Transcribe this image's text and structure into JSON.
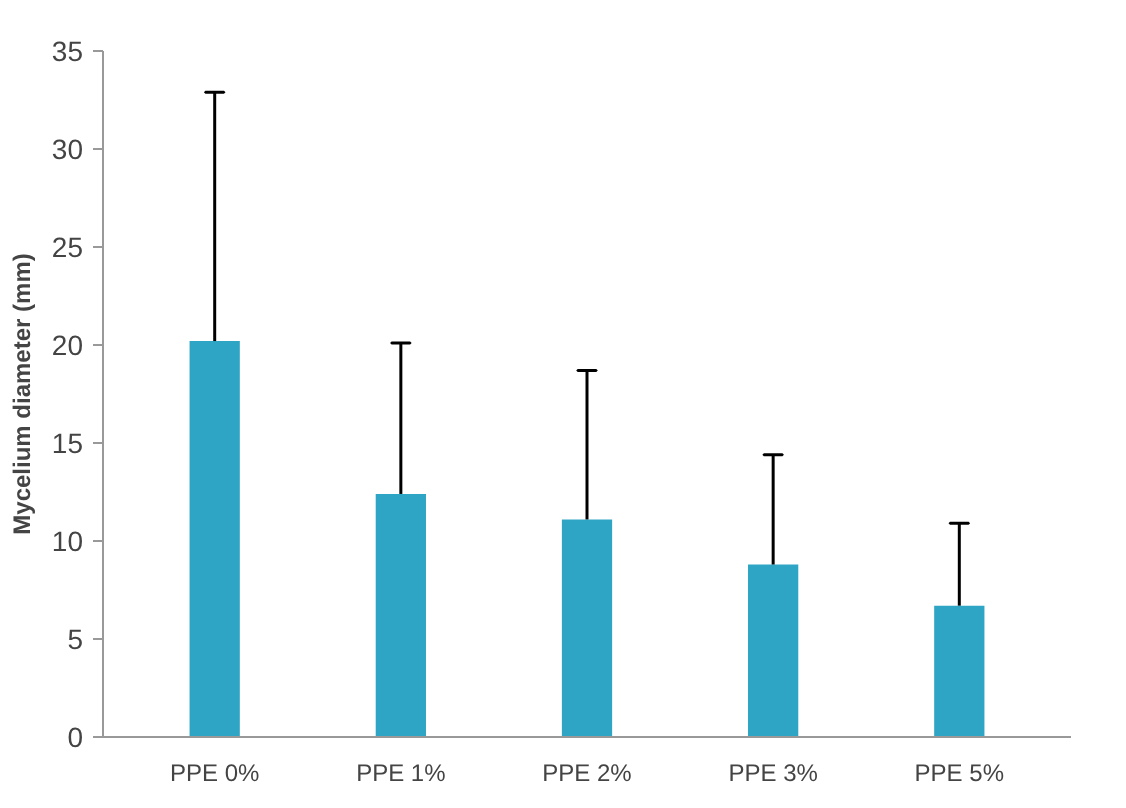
{
  "chart_data": {
    "type": "bar",
    "ylabel": "Mycelium diameter (mm)",
    "categories": [
      "PPE 0%",
      "PPE 1%",
      "PPE 2%",
      "PPE 3%",
      "PPE 5%"
    ],
    "values": [
      20.2,
      12.4,
      11.1,
      8.8,
      6.7
    ],
    "errors": [
      [
        20.2,
        32.9
      ],
      [
        12.4,
        20.1
      ],
      [
        11.1,
        18.7
      ],
      [
        8.8,
        14.4
      ],
      [
        6.7,
        10.9
      ]
    ],
    "color": "#2ea5c4",
    "ylim": [
      0,
      35
    ],
    "yticks": [
      0,
      5,
      10,
      15,
      20,
      25,
      30,
      35
    ],
    "grid": false
  }
}
